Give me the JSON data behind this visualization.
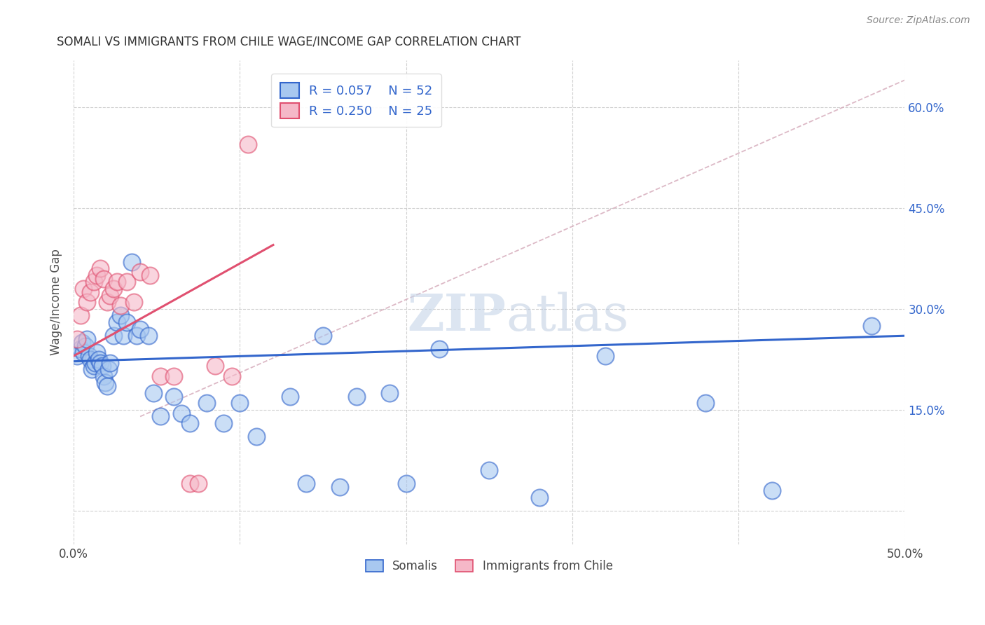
{
  "title": "SOMALI VS IMMIGRANTS FROM CHILE WAGE/INCOME GAP CORRELATION CHART",
  "source": "Source: ZipAtlas.com",
  "ylabel": "Wage/Income Gap",
  "xlim": [
    0.0,
    0.5
  ],
  "ylim": [
    -0.05,
    0.67
  ],
  "color_somali": "#a8c8f0",
  "color_chile": "#f5b8c8",
  "color_somali_line": "#3366cc",
  "color_chile_line": "#e05070",
  "color_dashed": "#d4a8b8",
  "color_legend_text": "#3366cc",
  "watermark_zip": "#c8d8ee",
  "watermark_atlas": "#b8c8de",
  "somali_x": [
    0.002,
    0.004,
    0.005,
    0.006,
    0.007,
    0.008,
    0.009,
    0.01,
    0.011,
    0.012,
    0.013,
    0.014,
    0.015,
    0.016,
    0.017,
    0.018,
    0.019,
    0.02,
    0.021,
    0.022,
    0.024,
    0.026,
    0.028,
    0.03,
    0.032,
    0.035,
    0.038,
    0.04,
    0.045,
    0.048,
    0.052,
    0.06,
    0.065,
    0.07,
    0.08,
    0.09,
    0.1,
    0.11,
    0.13,
    0.14,
    0.15,
    0.16,
    0.17,
    0.19,
    0.2,
    0.22,
    0.25,
    0.28,
    0.32,
    0.38,
    0.42,
    0.48
  ],
  "somali_y": [
    0.23,
    0.24,
    0.25,
    0.235,
    0.245,
    0.255,
    0.23,
    0.225,
    0.21,
    0.215,
    0.22,
    0.235,
    0.225,
    0.22,
    0.215,
    0.2,
    0.19,
    0.185,
    0.21,
    0.22,
    0.26,
    0.28,
    0.29,
    0.26,
    0.28,
    0.37,
    0.26,
    0.27,
    0.26,
    0.175,
    0.14,
    0.17,
    0.145,
    0.13,
    0.16,
    0.13,
    0.16,
    0.11,
    0.17,
    0.04,
    0.26,
    0.035,
    0.17,
    0.175,
    0.04,
    0.24,
    0.06,
    0.02,
    0.23,
    0.16,
    0.03,
    0.275
  ],
  "chile_x": [
    0.002,
    0.004,
    0.006,
    0.008,
    0.01,
    0.012,
    0.014,
    0.016,
    0.018,
    0.02,
    0.022,
    0.024,
    0.026,
    0.028,
    0.032,
    0.036,
    0.04,
    0.046,
    0.052,
    0.06,
    0.07,
    0.075,
    0.085,
    0.095,
    0.105
  ],
  "chile_y": [
    0.255,
    0.29,
    0.33,
    0.31,
    0.325,
    0.34,
    0.35,
    0.36,
    0.345,
    0.31,
    0.32,
    0.33,
    0.34,
    0.305,
    0.34,
    0.31,
    0.355,
    0.35,
    0.2,
    0.2,
    0.04,
    0.04,
    0.215,
    0.2,
    0.545
  ],
  "somali_line_x": [
    0.0,
    0.5
  ],
  "somali_line_y": [
    0.222,
    0.26
  ],
  "chile_line_x": [
    0.0,
    0.12
  ],
  "chile_line_y": [
    0.23,
    0.395
  ],
  "dashed_line_x": [
    0.04,
    0.5
  ],
  "dashed_line_y": [
    0.14,
    0.64
  ]
}
